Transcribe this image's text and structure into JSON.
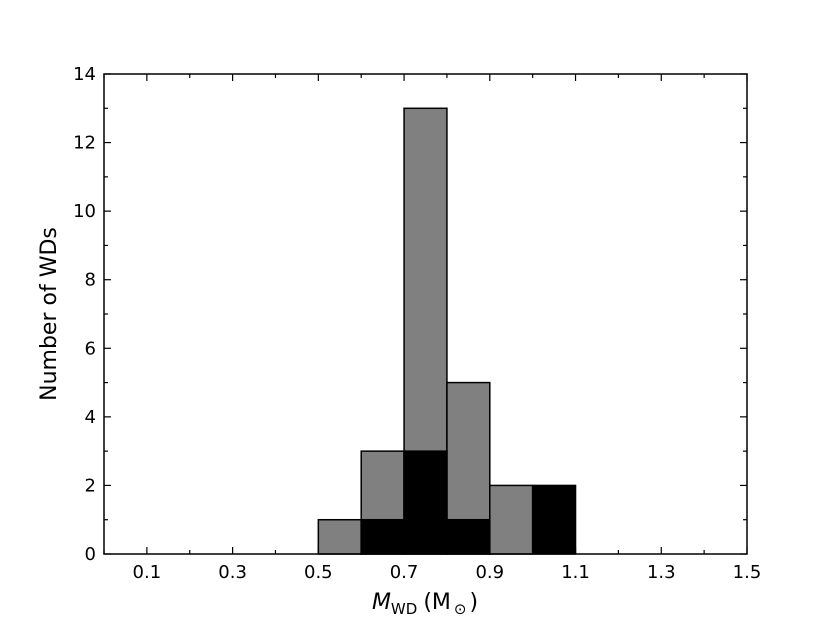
{
  "chart_data": {
    "type": "bar",
    "title": "",
    "xlabel_main": "M",
    "xlabel_sub": "WD",
    "xlabel_unit": "(M",
    "xlabel_unit_sub": "⊙",
    "xlabel_close": ")",
    "ylabel": "Number of WDs",
    "xlim": [
      0.0,
      1.5
    ],
    "ylim": [
      0,
      14
    ],
    "x_ticks": [
      "0.1",
      "0.3",
      "0.5",
      "0.7",
      "0.9",
      "1.1",
      "1.3",
      "1.5"
    ],
    "y_ticks": [
      "0",
      "2",
      "4",
      "6",
      "8",
      "10",
      "12",
      "14"
    ],
    "bin_edges": [
      0.5,
      0.6,
      0.7,
      0.8,
      0.9,
      1.0,
      1.1
    ],
    "series": [
      {
        "values": [
          1,
          3,
          13,
          5,
          2,
          0
        ],
        "color": "#808080"
      },
      {
        "values": [
          0,
          1,
          3,
          1,
          0,
          2
        ],
        "color": "#000000"
      }
    ],
    "grid": false,
    "legend": "none"
  }
}
